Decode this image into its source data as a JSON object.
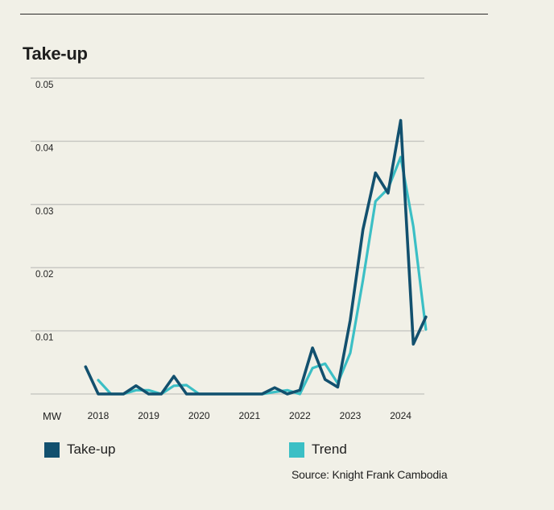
{
  "chart_data": {
    "type": "line",
    "title": "Take-up",
    "ylabel": "MW",
    "xlabel": "",
    "ylim": [
      0,
      0.05
    ],
    "yticks": [
      "0.05",
      "0.04",
      "0.03",
      "0.02",
      "0.01"
    ],
    "xticks": [
      "2018",
      "2019",
      "2020",
      "2021",
      "2022",
      "2023",
      "2024"
    ],
    "grid": "horizontal",
    "legend_position": "bottom",
    "series": [
      {
        "name": "Take-up",
        "color": "#12506e",
        "points": [
          [
            2017.75,
            0.0043
          ],
          [
            2018.0,
            0.0
          ],
          [
            2018.25,
            0.0
          ],
          [
            2018.5,
            0.0
          ],
          [
            2018.75,
            0.0013
          ],
          [
            2019.0,
            0.0
          ],
          [
            2019.25,
            0.0
          ],
          [
            2019.5,
            0.0028
          ],
          [
            2019.75,
            0.0
          ],
          [
            2020.0,
            0.0
          ],
          [
            2020.25,
            0.0
          ],
          [
            2020.5,
            0.0
          ],
          [
            2020.75,
            0.0
          ],
          [
            2021.0,
            0.0
          ],
          [
            2021.25,
            0.0
          ],
          [
            2021.5,
            0.001
          ],
          [
            2021.75,
            0.0
          ],
          [
            2022.0,
            0.0006
          ],
          [
            2022.25,
            0.0073
          ],
          [
            2022.5,
            0.0023
          ],
          [
            2022.75,
            0.0011
          ],
          [
            2023.0,
            0.0117
          ],
          [
            2023.25,
            0.026
          ],
          [
            2023.5,
            0.035
          ],
          [
            2023.75,
            0.0318
          ],
          [
            2024.0,
            0.0433
          ],
          [
            2024.25,
            0.0079
          ],
          [
            2024.5,
            0.0122
          ]
        ]
      },
      {
        "name": "Trend",
        "color": "#3bbfc5",
        "points": [
          [
            2018.0,
            0.0022
          ],
          [
            2018.25,
            0.0
          ],
          [
            2018.5,
            0.0
          ],
          [
            2018.75,
            0.0006
          ],
          [
            2019.0,
            0.0006
          ],
          [
            2019.25,
            0.0
          ],
          [
            2019.5,
            0.0013
          ],
          [
            2019.75,
            0.0014
          ],
          [
            2020.0,
            0.0
          ],
          [
            2020.25,
            0.0
          ],
          [
            2020.5,
            0.0
          ],
          [
            2020.75,
            0.0
          ],
          [
            2021.0,
            0.0
          ],
          [
            2021.25,
            0.0
          ],
          [
            2021.5,
            0.0003
          ],
          [
            2021.75,
            0.0006
          ],
          [
            2022.0,
            0.0
          ],
          [
            2022.25,
            0.0041
          ],
          [
            2022.5,
            0.0048
          ],
          [
            2022.75,
            0.0017
          ],
          [
            2023.0,
            0.0065
          ],
          [
            2023.25,
            0.018
          ],
          [
            2023.5,
            0.0305
          ],
          [
            2023.75,
            0.0325
          ],
          [
            2024.0,
            0.0375
          ],
          [
            2024.25,
            0.0265
          ],
          [
            2024.5,
            0.0102
          ]
        ]
      }
    ]
  },
  "legend": {
    "takeup_label": "Take-up",
    "trend_label": "Trend",
    "takeup_color": "#12506e",
    "trend_color": "#3bbfc5"
  },
  "source": "Source: Knight Frank Cambodia"
}
